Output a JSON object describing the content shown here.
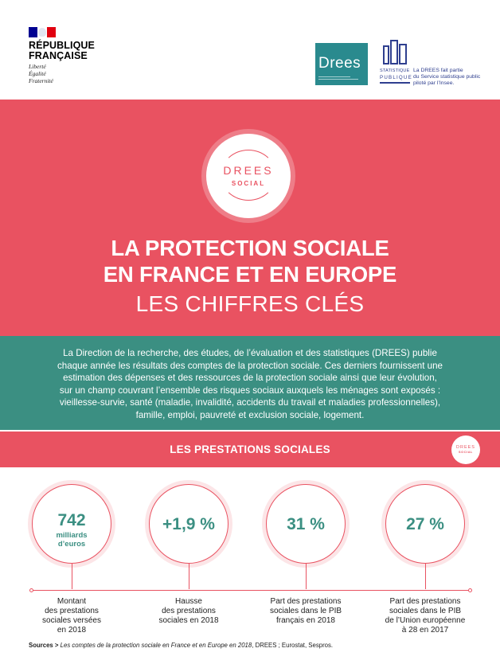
{
  "header": {
    "rf_name_line1": "RÉPUBLIQUE",
    "rf_name_line2": "FRANÇAISE",
    "rf_motto_1": "Liberté",
    "rf_motto_2": "Égalité",
    "rf_motto_3": "Fraternité",
    "drees_logo": "Drees",
    "ssp_label1": "STATISTIQUE",
    "ssp_label2": "PUBLIQUE",
    "ssp_note_1": "La DREES fait partie",
    "ssp_note_2": "du Service statistique public",
    "ssp_note_3": "piloté par l’Insee.",
    "colors": {
      "marianne_blue": "#000091",
      "marianne_red": "#e1000f",
      "drees_teal": "#2a8a8e",
      "ssp_blue": "#2f3f8f"
    }
  },
  "hero": {
    "badge_line1": "DREES",
    "badge_line2": "SOCIAL",
    "title_line1": "LA PROTECTION SOCIALE",
    "title_line2": "EN FRANCE ET EN EUROPE",
    "subtitle": "LES CHIFFRES CLÉS",
    "color": "#e95261"
  },
  "intro": {
    "line1": "La Direction de la recherche, des études, de l’évaluation et des statistiques (DREES) publie",
    "line2": "chaque année les résultats des comptes de la protection sociale. Ces derniers fournissent une",
    "line3": "estimation des dépenses et des ressources de la protection sociale ainsi que leur évolution,",
    "line4": "sur un champ couvrant l’ensemble des risques sociaux auxquels les ménages sont exposés :",
    "line5": "vieillesse-survie, santé (maladie, invalidité, accidents du travail et maladies professionnelles),",
    "line6": "famille, emploi, pauvreté et exclusion sociale, logement.",
    "color": "#3b8f82"
  },
  "section": {
    "title": "LES PRESTATIONS SOCIALES",
    "badge_line1": "DREES",
    "badge_line2": "SOCIAL"
  },
  "stats": [
    {
      "value": "742",
      "unit_line1": "milliards",
      "unit_line2": "d’euros",
      "label_lines": [
        "Montant",
        "des prestations",
        "sociales versées",
        "en 2018"
      ]
    },
    {
      "value": "+1,9 %",
      "unit_line1": "",
      "unit_line2": "",
      "label_lines": [
        "Hausse",
        "des prestations",
        "sociales en 2018"
      ]
    },
    {
      "value": "31 %",
      "unit_line1": "",
      "unit_line2": "",
      "label_lines": [
        "Part des prestations",
        "sociales dans le PIB",
        "français en 2018"
      ]
    },
    {
      "value": "27 %",
      "unit_line1": "",
      "unit_line2": "",
      "label_lines": [
        "Part des prestations",
        "sociales dans le PIB",
        "de l’Union européenne",
        "à 28 en 2017"
      ]
    }
  ],
  "sources": {
    "prefix": "Sources >",
    "italic": "Les comptes de la protection sociale en France et en Europe en 2018",
    "rest": ", DREES ; Eurostat, Sespros."
  }
}
